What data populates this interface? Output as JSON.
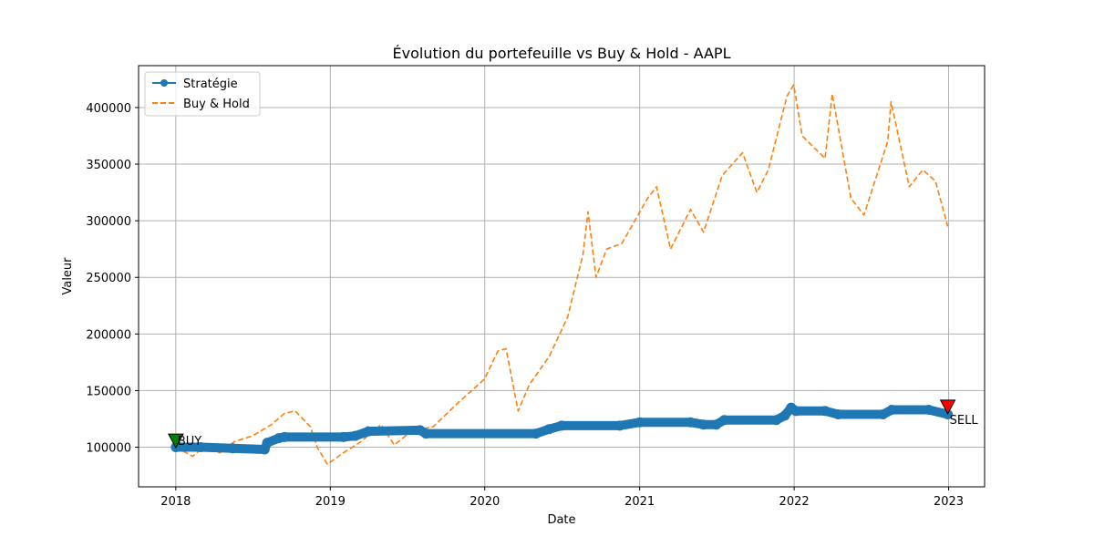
{
  "chart_data": {
    "type": "line",
    "title": "Évolution du portefeuille vs Buy & Hold - AAPL",
    "xlabel": "Date",
    "ylabel": "Valeur",
    "x_ticks": [
      "2018",
      "2019",
      "2020",
      "2021",
      "2022",
      "2023"
    ],
    "y_ticks": [
      "100000",
      "150000",
      "200000",
      "250000",
      "300000",
      "350000",
      "400000"
    ],
    "xlim": [
      "2017-10-05",
      "2023-03-27"
    ],
    "ylim": [
      65000,
      437000
    ],
    "grid": true,
    "legend_position": "top-left",
    "series": [
      {
        "name": "Stratégie",
        "color": "#1f77b4",
        "style": "solid-with-markers",
        "points": [
          [
            "2018-01-01",
            100000
          ],
          [
            "2018-03-01",
            100000
          ],
          [
            "2018-05-15",
            99000
          ],
          [
            "2018-07-30",
            98000
          ],
          [
            "2018-08-05",
            104000
          ],
          [
            "2018-09-01",
            108000
          ],
          [
            "2018-09-15",
            109000
          ],
          [
            "2019-02-01",
            109000
          ],
          [
            "2019-03-01",
            110000
          ],
          [
            "2019-04-01",
            114000
          ],
          [
            "2019-08-01",
            115000
          ],
          [
            "2019-08-15",
            112000
          ],
          [
            "2020-05-01",
            112000
          ],
          [
            "2020-06-01",
            116000
          ],
          [
            "2020-07-01",
            119000
          ],
          [
            "2020-11-15",
            119000
          ],
          [
            "2021-01-01",
            122000
          ],
          [
            "2021-05-01",
            122000
          ],
          [
            "2021-06-01",
            120000
          ],
          [
            "2021-07-01",
            120000
          ],
          [
            "2021-07-20",
            124000
          ],
          [
            "2021-11-20",
            124000
          ],
          [
            "2021-12-10",
            128000
          ],
          [
            "2021-12-25",
            135000
          ],
          [
            "2022-01-05",
            132000
          ],
          [
            "2022-03-15",
            132000
          ],
          [
            "2022-04-15",
            129000
          ],
          [
            "2022-07-30",
            129000
          ],
          [
            "2022-08-20",
            133000
          ],
          [
            "2022-11-15",
            133000
          ],
          [
            "2022-12-30",
            129000
          ]
        ]
      },
      {
        "name": "Buy & Hold",
        "color": "#ff7f0e",
        "style": "dashed",
        "points": [
          [
            "2018-01-01",
            100000
          ],
          [
            "2018-02-10",
            92000
          ],
          [
            "2018-03-10",
            101000
          ],
          [
            "2018-04-15",
            95000
          ],
          [
            "2018-05-20",
            105000
          ],
          [
            "2018-07-01",
            110000
          ],
          [
            "2018-08-15",
            120000
          ],
          [
            "2018-09-15",
            130000
          ],
          [
            "2018-10-10",
            132000
          ],
          [
            "2018-11-15",
            118000
          ],
          [
            "2018-12-01",
            100000
          ],
          [
            "2018-12-25",
            85000
          ],
          [
            "2019-02-01",
            95000
          ],
          [
            "2019-03-15",
            105000
          ],
          [
            "2019-05-01",
            120000
          ],
          [
            "2019-06-01",
            102000
          ],
          [
            "2019-07-15",
            115000
          ],
          [
            "2019-09-01",
            118000
          ],
          [
            "2019-11-01",
            140000
          ],
          [
            "2019-12-31",
            160000
          ],
          [
            "2020-02-01",
            185000
          ],
          [
            "2020-02-20",
            187000
          ],
          [
            "2020-03-20",
            132000
          ],
          [
            "2020-04-15",
            155000
          ],
          [
            "2020-06-01",
            180000
          ],
          [
            "2020-07-15",
            215000
          ],
          [
            "2020-08-20",
            270000
          ],
          [
            "2020-09-01",
            308000
          ],
          [
            "2020-09-20",
            250000
          ],
          [
            "2020-10-15",
            275000
          ],
          [
            "2020-11-20",
            280000
          ],
          [
            "2021-01-20",
            320000
          ],
          [
            "2021-02-10",
            330000
          ],
          [
            "2021-03-15",
            275000
          ],
          [
            "2021-05-01",
            310000
          ],
          [
            "2021-06-01",
            290000
          ],
          [
            "2021-07-15",
            340000
          ],
          [
            "2021-09-01",
            360000
          ],
          [
            "2021-10-05",
            325000
          ],
          [
            "2021-11-01",
            345000
          ],
          [
            "2021-12-15",
            410000
          ],
          [
            "2021-12-31",
            420000
          ],
          [
            "2022-01-20",
            375000
          ],
          [
            "2022-03-15",
            355000
          ],
          [
            "2022-04-01",
            412000
          ],
          [
            "2022-05-15",
            320000
          ],
          [
            "2022-06-15",
            305000
          ],
          [
            "2022-08-10",
            370000
          ],
          [
            "2022-08-18",
            405000
          ],
          [
            "2022-09-30",
            330000
          ],
          [
            "2022-11-01",
            345000
          ],
          [
            "2022-12-01",
            335000
          ],
          [
            "2022-12-30",
            295000
          ]
        ]
      }
    ],
    "annotations": [
      {
        "label": "BUY",
        "date": "2018-01-01",
        "value": 106000,
        "color": "#008000"
      },
      {
        "label": "SELL",
        "date": "2022-12-30",
        "value": 136000,
        "color": "#ff0000"
      }
    ]
  }
}
